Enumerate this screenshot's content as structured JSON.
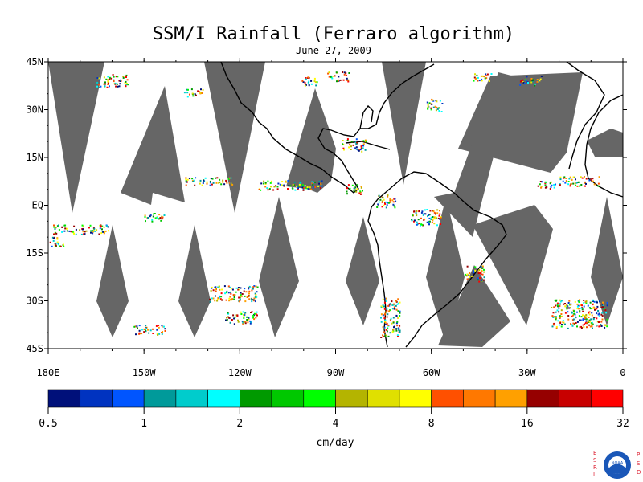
{
  "title": "SSM/I Rainfall (Ferraro algorithm)",
  "subtitle": "June 27, 2009",
  "lat_labels": [
    "45N",
    "30N",
    "15N",
    "EQ",
    "15S",
    "30S",
    "45S"
  ],
  "lat_values": [
    45,
    30,
    15,
    0,
    -15,
    -30,
    -45
  ],
  "lon_labels": [
    "180E",
    "150W",
    "120W",
    "90W",
    "60W",
    "30W",
    "0"
  ],
  "lon_values": [
    -180,
    -150,
    -120,
    -90,
    -60,
    -30,
    0
  ],
  "colorbar": {
    "unit_label": "cm/day",
    "tick_labels": [
      "0.5",
      "1",
      "2",
      "4",
      "8",
      "16",
      "32"
    ],
    "colors": [
      "#00107a",
      "#0033c0",
      "#0055ff",
      "#009a9a",
      "#00cccc",
      "#00ffff",
      "#009a00",
      "#00c800",
      "#00ff00",
      "#b4b400",
      "#e0e000",
      "#ffff00",
      "#ff5000",
      "#ff7800",
      "#ffa000",
      "#960000",
      "#c80000",
      "#ff0000"
    ]
  },
  "logo": {
    "left_letters": "ESRL",
    "right_letters": "PSD",
    "center_text": "NOAA"
  },
  "swath_color": "#666666"
}
